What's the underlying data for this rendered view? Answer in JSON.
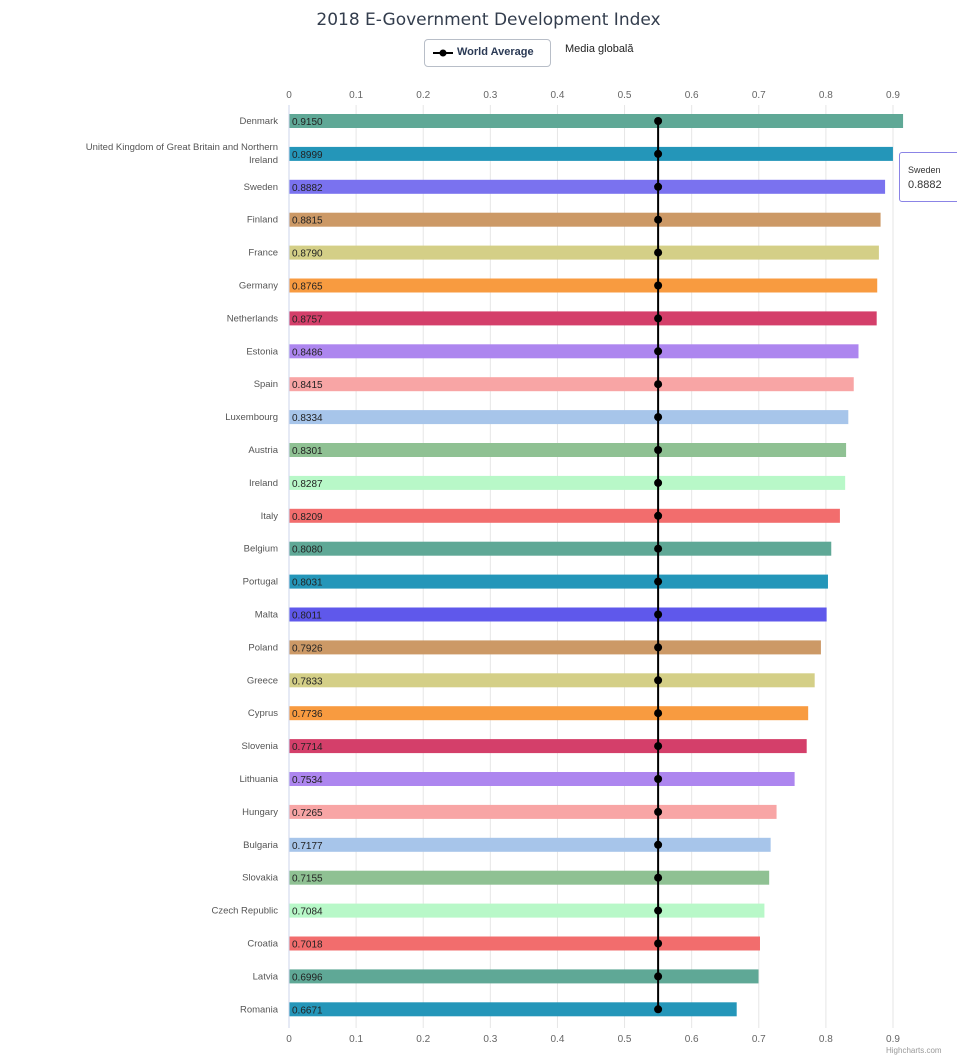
{
  "chart_data": {
    "type": "bar",
    "orientation": "horizontal",
    "title": "2018 E-Government Development Index",
    "xlim": [
      0,
      0.9
    ],
    "x_ticks": [
      "0",
      "0.1",
      "0.2",
      "0.3",
      "0.4",
      "0.5",
      "0.6",
      "0.7",
      "0.8",
      "0.9"
    ],
    "grid": true,
    "categories": [
      "Denmark",
      "United Kingdom of Great Britain and Northern Ireland",
      "Sweden",
      "Finland",
      "France",
      "Germany",
      "Netherlands",
      "Estonia",
      "Spain",
      "Luxembourg",
      "Austria",
      "Ireland",
      "Italy",
      "Belgium",
      "Portugal",
      "Malta",
      "Poland",
      "Greece",
      "Cyprus",
      "Slovenia",
      "Lithuania",
      "Hungary",
      "Bulgaria",
      "Slovakia",
      "Czech Republic",
      "Croatia",
      "Latvia",
      "Romania"
    ],
    "values": [
      0.915,
      0.8999,
      0.8882,
      0.8815,
      0.879,
      0.8765,
      0.8757,
      0.8486,
      0.8415,
      0.8334,
      0.8301,
      0.8287,
      0.8209,
      0.808,
      0.8031,
      0.8011,
      0.7926,
      0.7833,
      0.7736,
      0.7714,
      0.7534,
      0.7265,
      0.7177,
      0.7155,
      0.7084,
      0.7018,
      0.6996,
      0.6671
    ],
    "data_labels": [
      "0.9150",
      "0.8999",
      "0.8882",
      "0.8815",
      "0.8790",
      "0.8765",
      "0.8757",
      "0.8486",
      "0.8415",
      "0.8334",
      "0.8301",
      "0.8287",
      "0.8209",
      "0.8080",
      "0.8031",
      "0.8011",
      "0.7926",
      "0.7833",
      "0.7736",
      "0.7714",
      "0.7534",
      "0.7265",
      "0.7177",
      "0.7155",
      "0.7084",
      "0.7018",
      "0.6996",
      "0.6671"
    ],
    "colors": [
      "#5fa896",
      "#2496b9",
      "#7a72ef",
      "#cc9966",
      "#d4cf87",
      "#f89b40",
      "#d43f6a",
      "#ad86ef",
      "#f8a5a5",
      "#a7c5ea",
      "#8fc193",
      "#b8f8c8",
      "#f26d6d",
      "#5fa896",
      "#2496b9",
      "#5f58eb",
      "#cc9966",
      "#d4cf87",
      "#f89b40",
      "#d43f6a",
      "#ad86ef",
      "#f8a5a5",
      "#a7c5ea",
      "#8fc193",
      "#b8f8c8",
      "#f26d6d",
      "#5fa896",
      "#2496b9"
    ],
    "series": [
      {
        "name": "World Average",
        "type": "line",
        "value": 0.55,
        "color": "#000000"
      }
    ],
    "legend": {
      "position": "top-center",
      "items": [
        "World Average"
      ],
      "extra_text": "Media globală"
    }
  },
  "tooltip": {
    "name": "Sweden",
    "value": "0.8882"
  },
  "credits": "Highcharts.com"
}
